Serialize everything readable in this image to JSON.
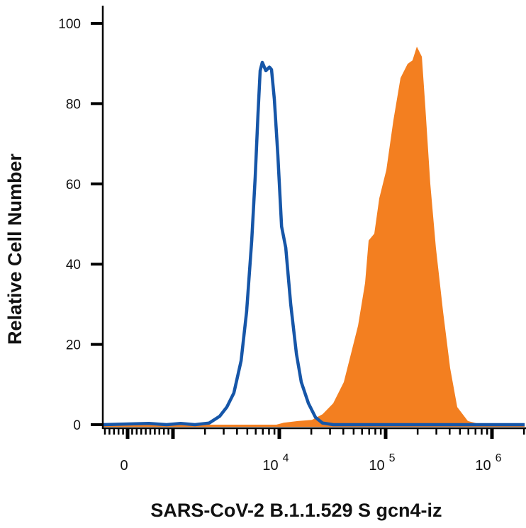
{
  "chart_data": {
    "type": "area",
    "title": "",
    "xlabel": "SARS-CoV-2 B.1.1.529 S gcn4-iz",
    "ylabel": "Relative Cell Number",
    "x_scale": "biexponential (linear near 0, log above 10^3)",
    "xlim": [
      -550,
      2030000
    ],
    "ylim": [
      0,
      100
    ],
    "y_ticks": [
      "0",
      "20",
      "40",
      "60",
      "80",
      "100"
    ],
    "x_ticks": [
      {
        "value": 0,
        "base": "0",
        "exp": ""
      },
      {
        "value": 10000,
        "base": "10",
        "exp": "4"
      },
      {
        "value": 100000,
        "base": "10",
        "exp": "5"
      },
      {
        "value": 1000000,
        "base": "10",
        "exp": "6"
      }
    ],
    "grid": false,
    "legend": "none",
    "series": [
      {
        "style": "filled",
        "color": "#F37F20",
        "x": [
          -550,
          9400,
          11000,
          14900,
          20300,
          25500,
          32100,
          40400,
          47100,
          55000,
          64100,
          69200,
          78200,
          87100,
          101600,
          118300,
          138000,
          161000,
          179000,
          196400,
          219000,
          236000,
          263000,
          297000,
          347000,
          404000,
          471000,
          593000,
          807000,
          2030000
        ],
        "y": [
          0,
          0,
          0.5,
          0.9,
          1.2,
          2.6,
          5.3,
          10.6,
          17.6,
          24.7,
          35.3,
          45.9,
          47.6,
          56.4,
          63.5,
          75.8,
          86.4,
          89.9,
          90.8,
          94.2,
          91.7,
          79.4,
          60,
          44.1,
          28.2,
          14.1,
          4.4,
          0.9,
          0,
          0
        ]
      },
      {
        "style": "outline",
        "color": "#1656A8",
        "x": [
          -550,
          470,
          860,
          1180,
          1610,
          2190,
          2750,
          3210,
          3740,
          4370,
          4930,
          5500,
          5930,
          6310,
          6610,
          6920,
          7470,
          8070,
          8450,
          8980,
          9700,
          10500,
          11500,
          12800,
          14500,
          16100,
          18800,
          21900,
          25500,
          32100,
          2030000
        ],
        "y": [
          0,
          0.3,
          0,
          0.3,
          0,
          0.4,
          2.1,
          4.4,
          7.9,
          15.9,
          28.2,
          45.9,
          61.7,
          77.6,
          88.2,
          90.3,
          88.2,
          89.1,
          88.5,
          81.1,
          67,
          49.4,
          44.1,
          30,
          17.6,
          10.6,
          5.3,
          1.8,
          0.4,
          0,
          0
        ]
      }
    ]
  }
}
